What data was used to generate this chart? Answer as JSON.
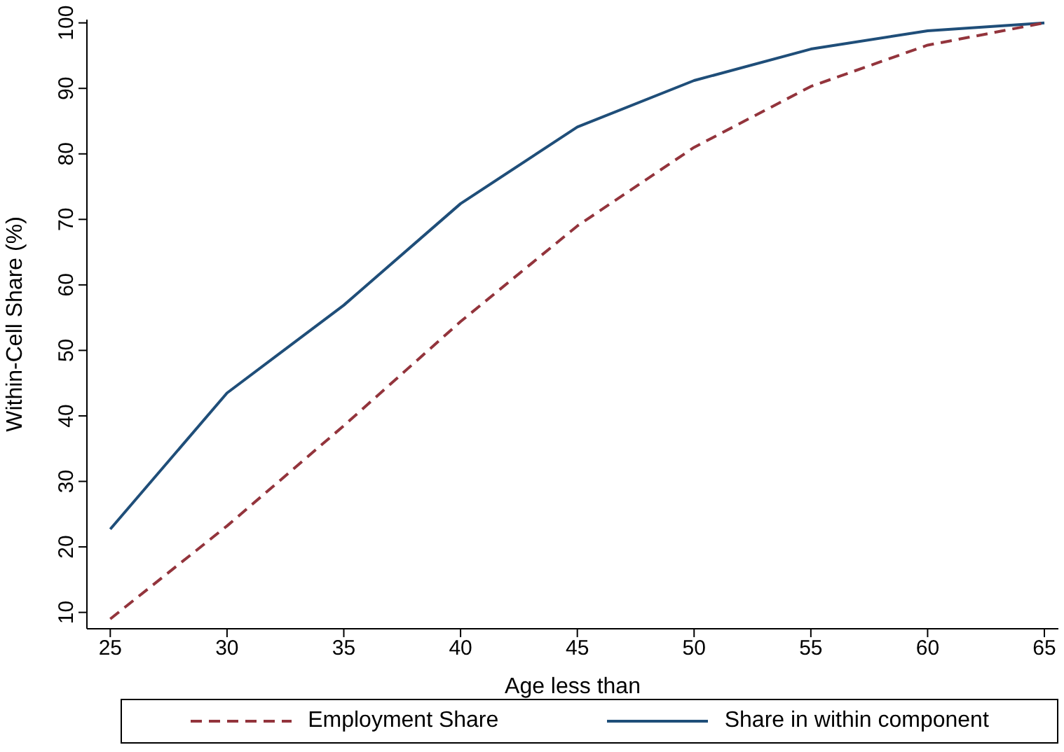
{
  "chart_data": {
    "type": "line",
    "xlabel": "Age less than",
    "ylabel": "Within-Cell Share (%)",
    "x": [
      25,
      30,
      35,
      40,
      45,
      50,
      55,
      60,
      65
    ],
    "series": [
      {
        "name": "Share in within component",
        "color": "#1f4e79",
        "line_style": "solid",
        "values": [
          22.7,
          43.5,
          56.9,
          72.4,
          84.1,
          91.2,
          96,
          98.8,
          100
        ]
      },
      {
        "name": "Employment Share",
        "color": "#93343c",
        "line_style": "dashed",
        "values": [
          9,
          23.2,
          38.5,
          54.4,
          69,
          81,
          90.3,
          96.6,
          100
        ]
      }
    ],
    "xlim": [
      24,
      65.6
    ],
    "xticks": [
      25,
      30,
      35,
      40,
      45,
      50,
      55,
      60,
      65
    ],
    "ylim": [
      7.5,
      100.5
    ],
    "yticks": [
      10,
      20,
      30,
      40,
      50,
      60,
      70,
      80,
      90,
      100
    ],
    "grid": false,
    "legend": "bottom",
    "marker": "none"
  }
}
